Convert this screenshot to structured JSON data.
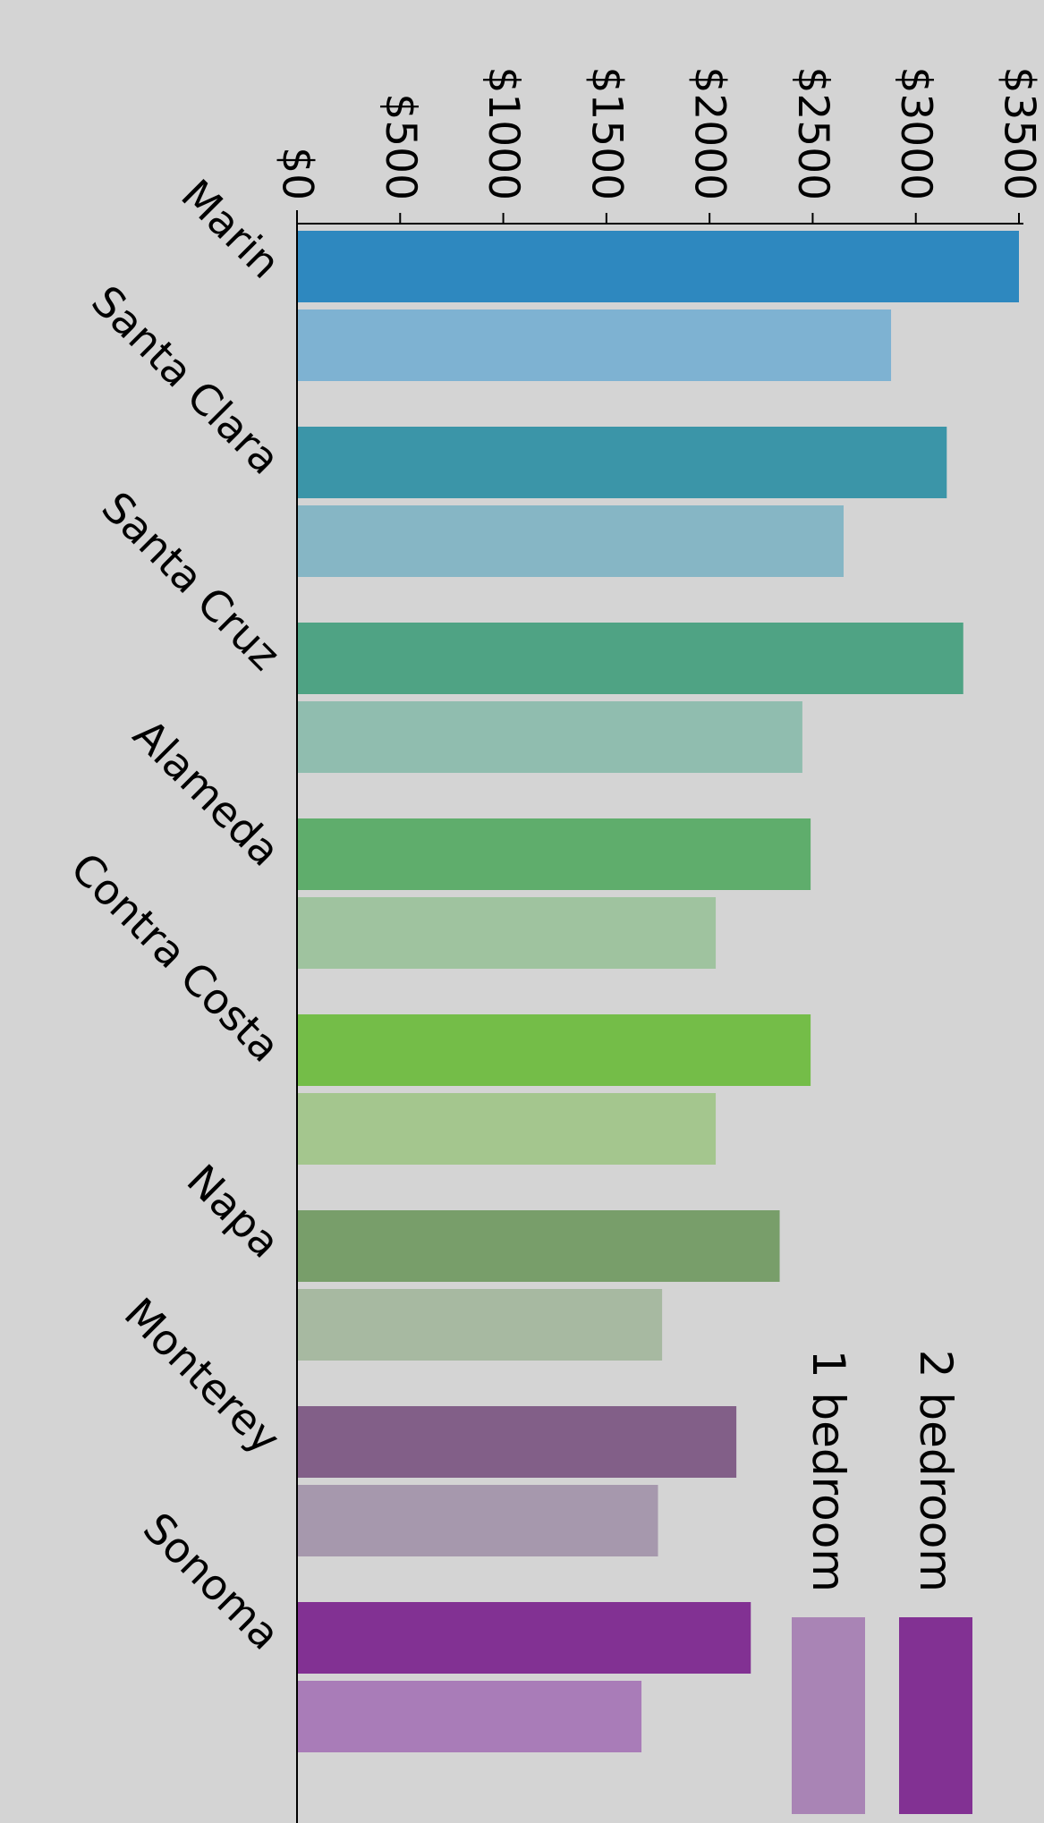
{
  "chart_data": {
    "type": "bar",
    "orientation": "horizontal",
    "title": "",
    "xlabel": "",
    "ylabel": "",
    "xlim": [
      0,
      3500
    ],
    "ticks": [
      {
        "value": 0,
        "label": "$0"
      },
      {
        "value": 500,
        "label": "$500"
      },
      {
        "value": 1000,
        "label": "$1000"
      },
      {
        "value": 1500,
        "label": "$1500"
      },
      {
        "value": 2000,
        "label": "$2000"
      },
      {
        "value": 2500,
        "label": "$2500"
      },
      {
        "value": 3000,
        "label": "$3000"
      },
      {
        "value": 3500,
        "label": "$3500"
      }
    ],
    "grid": false,
    "legend_position": "bottom-right",
    "categories": [
      "Marin",
      "Santa Clara",
      "Santa Cruz",
      "Alameda",
      "Contra Costa",
      "Napa",
      "Monterey",
      "Sonoma"
    ],
    "series": [
      {
        "name": "2 bedroom",
        "values": [
          3500,
          3150,
          3230,
          2490,
          2490,
          2340,
          2130,
          2200
        ],
        "colors": [
          "#2e88bf",
          "#3b95a8",
          "#4fa384",
          "#5fad6c",
          "#74bd48",
          "#789e6a",
          "#825f88",
          "#823193"
        ]
      },
      {
        "name": "1 bedroom",
        "values": [
          2880,
          2650,
          2450,
          2030,
          2030,
          1770,
          1750,
          1670
        ],
        "colors": [
          "#7eb2d2",
          "#86b6c5",
          "#90bdaf",
          "#9fc39f",
          "#a4c68e",
          "#a7b9a1",
          "#a698ad",
          "#a97cb8"
        ]
      }
    ],
    "legend_colors": [
      "#823193",
      "#a984b5"
    ]
  }
}
